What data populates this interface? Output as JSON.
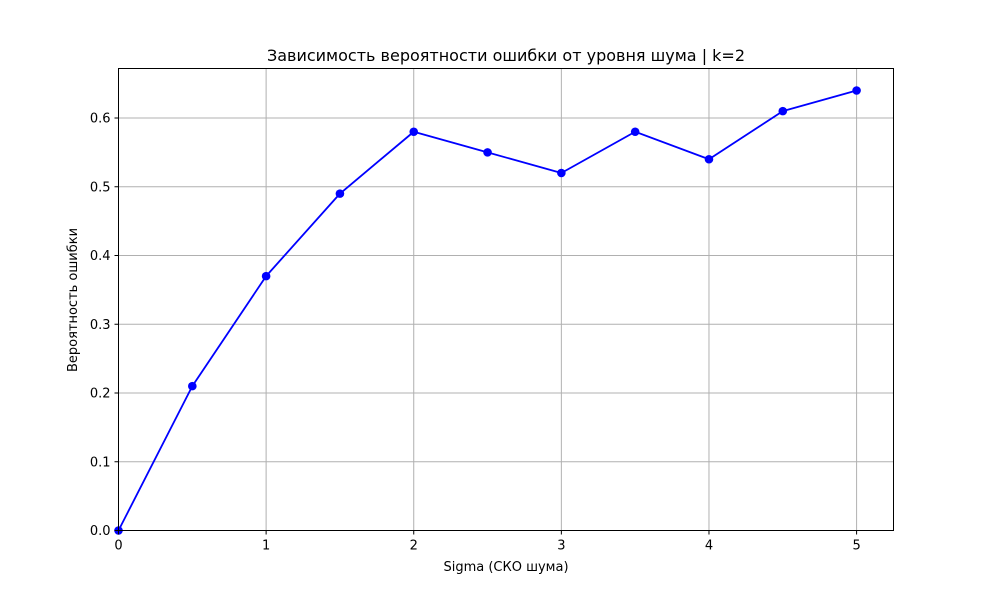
{
  "chart_data": {
    "type": "line",
    "title": "Зависимость вероятности ошибки от уровня шума | k=2",
    "xlabel": "Sigma (СКО шума)",
    "ylabel": "Вероятность ошибки",
    "xlim": [
      0,
      5.25
    ],
    "ylim": [
      0,
      0.672
    ],
    "xticks": [
      0,
      1,
      2,
      3,
      4,
      5
    ],
    "yticks": [
      0.0,
      0.1,
      0.2,
      0.3,
      0.4,
      0.5,
      0.6
    ],
    "grid": true,
    "series": [
      {
        "color": "#0000ff",
        "marker": "circle",
        "x": [
          0,
          0.5,
          1.0,
          1.5,
          2.0,
          2.5,
          3.0,
          3.5,
          4.0,
          4.5,
          5.0
        ],
        "y": [
          0.0,
          0.21,
          0.37,
          0.49,
          0.58,
          0.55,
          0.52,
          0.58,
          0.54,
          0.61,
          0.64
        ]
      }
    ]
  }
}
